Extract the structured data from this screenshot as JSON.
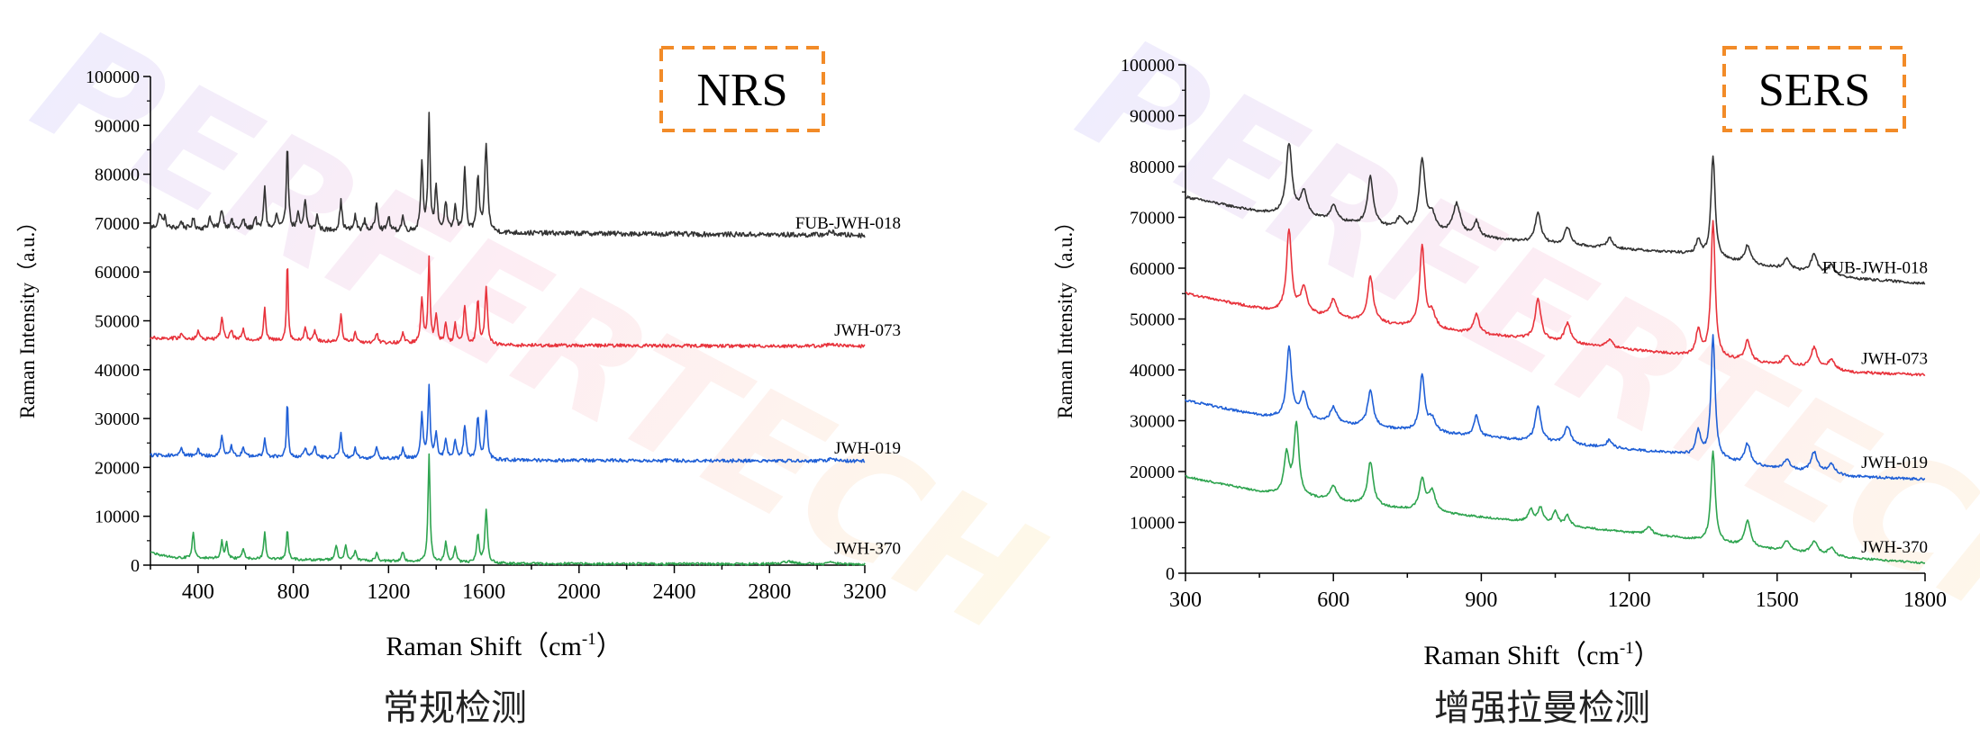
{
  "watermark": "PERFERTECH",
  "colors": {
    "black": "#333333",
    "red": "#e8333c",
    "blue": "#1f5fd6",
    "green": "#2ea44f",
    "badge_border": "#f28b28"
  },
  "chart_data": [
    {
      "id": "nrs",
      "type": "line",
      "badge": "NRS",
      "caption": "常规检测",
      "xlabel": "Raman Shift（cm",
      "xlabel_sup": "-1",
      "xlabel_end": "）",
      "ylabel": "Raman Intensity（a.u.）",
      "xlim": [
        200,
        3200
      ],
      "ylim": [
        0,
        100000
      ],
      "xticks": [
        400,
        800,
        1200,
        1600,
        2000,
        2400,
        2800,
        3200
      ],
      "yticks": [
        0,
        10000,
        20000,
        30000,
        40000,
        50000,
        60000,
        70000,
        80000,
        90000,
        100000
      ],
      "series": [
        {
          "name": "FUB-JWH-018",
          "color": "#333333",
          "baseline": [
            [
              200,
              69000
            ],
            [
              1650,
              68000
            ],
            [
              3200,
              67500
            ]
          ],
          "noise": 1000,
          "peaks": [
            [
              240,
              3000,
              8
            ],
            [
              260,
              2000,
              6
            ],
            [
              330,
              1500,
              6
            ],
            [
              380,
              2000,
              6
            ],
            [
              450,
              2500,
              6
            ],
            [
              500,
              4000,
              7
            ],
            [
              540,
              2000,
              6
            ],
            [
              590,
              2000,
              6
            ],
            [
              640,
              2500,
              6
            ],
            [
              680,
              9000,
              5
            ],
            [
              730,
              3000,
              6
            ],
            [
              775,
              18000,
              5
            ],
            [
              820,
              3000,
              6
            ],
            [
              850,
              6000,
              6
            ],
            [
              900,
              3000,
              6
            ],
            [
              1000,
              6000,
              6
            ],
            [
              1060,
              3000,
              6
            ],
            [
              1100,
              2000,
              6
            ],
            [
              1150,
              6000,
              6
            ],
            [
              1200,
              3000,
              6
            ],
            [
              1260,
              3000,
              6
            ],
            [
              1340,
              14000,
              6
            ],
            [
              1370,
              23000,
              5
            ],
            [
              1400,
              9000,
              6
            ],
            [
              1440,
              6000,
              6
            ],
            [
              1480,
              5000,
              6
            ],
            [
              1520,
              13000,
              6
            ],
            [
              1575,
              11000,
              6
            ],
            [
              1610,
              18000,
              7
            ],
            [
              3060,
              600,
              20
            ]
          ]
        },
        {
          "name": "JWH-073",
          "color": "#e8333c",
          "baseline": [
            [
              200,
              46500
            ],
            [
              1650,
              45000
            ],
            [
              3200,
              44800
            ]
          ],
          "noise": 700,
          "peaks": [
            [
              330,
              1000,
              6
            ],
            [
              400,
              1500,
              6
            ],
            [
              500,
              4500,
              6
            ],
            [
              540,
              2000,
              6
            ],
            [
              590,
              2000,
              6
            ],
            [
              680,
              6500,
              5
            ],
            [
              775,
              17000,
              4
            ],
            [
              850,
              3000,
              6
            ],
            [
              890,
              2000,
              6
            ],
            [
              1000,
              5500,
              6
            ],
            [
              1060,
              2000,
              6
            ],
            [
              1150,
              2000,
              6
            ],
            [
              1260,
              2000,
              6
            ],
            [
              1340,
              9000,
              6
            ],
            [
              1370,
              17000,
              5
            ],
            [
              1400,
              6000,
              6
            ],
            [
              1440,
              4000,
              6
            ],
            [
              1480,
              4000,
              6
            ],
            [
              1520,
              8000,
              6
            ],
            [
              1575,
              9000,
              6
            ],
            [
              1610,
              12000,
              6
            ],
            [
              3060,
              500,
              20
            ]
          ]
        },
        {
          "name": "JWH-019",
          "color": "#1f5fd6",
          "baseline": [
            [
              200,
              22500
            ],
            [
              1650,
              21500
            ],
            [
              3200,
              21300
            ]
          ],
          "noise": 700,
          "peaks": [
            [
              330,
              1500,
              6
            ],
            [
              400,
              1500,
              6
            ],
            [
              500,
              4000,
              6
            ],
            [
              540,
              2000,
              6
            ],
            [
              590,
              2000,
              6
            ],
            [
              680,
              4000,
              5
            ],
            [
              775,
              12000,
              4
            ],
            [
              850,
              2000,
              6
            ],
            [
              890,
              2500,
              6
            ],
            [
              1000,
              5000,
              6
            ],
            [
              1060,
              2000,
              6
            ],
            [
              1150,
              2000,
              6
            ],
            [
              1260,
              2000,
              6
            ],
            [
              1340,
              9000,
              6
            ],
            [
              1370,
              15000,
              5
            ],
            [
              1400,
              5000,
              6
            ],
            [
              1440,
              4000,
              6
            ],
            [
              1480,
              4000,
              6
            ],
            [
              1520,
              7000,
              6
            ],
            [
              1575,
              9000,
              6
            ],
            [
              1610,
              10000,
              6
            ],
            [
              3060,
              400,
              20
            ]
          ]
        },
        {
          "name": "JWH-370",
          "color": "#2ea44f",
          "baseline": [
            [
              200,
              2500
            ],
            [
              300,
              1500
            ],
            [
              1000,
              1000
            ],
            [
              1700,
              300
            ],
            [
              3200,
              200
            ]
          ],
          "noise": 500,
          "peaks": [
            [
              380,
              5500,
              5
            ],
            [
              500,
              3500,
              5
            ],
            [
              520,
              3500,
              5
            ],
            [
              590,
              2000,
              6
            ],
            [
              680,
              5500,
              5
            ],
            [
              775,
              6000,
              5
            ],
            [
              980,
              3000,
              6
            ],
            [
              1020,
              3000,
              6
            ],
            [
              1060,
              2000,
              6
            ],
            [
              1150,
              1500,
              6
            ],
            [
              1260,
              2000,
              6
            ],
            [
              1370,
              22000,
              5
            ],
            [
              1440,
              4000,
              6
            ],
            [
              1480,
              3000,
              6
            ],
            [
              1575,
              6000,
              6
            ],
            [
              1610,
              11000,
              6
            ],
            [
              2880,
              500,
              30
            ],
            [
              3060,
              300,
              20
            ]
          ]
        }
      ]
    },
    {
      "id": "sers",
      "type": "line",
      "badge": "SERS",
      "caption": "增强拉曼检测",
      "xlabel": "Raman Shift（cm",
      "xlabel_sup": "-1",
      "xlabel_end": "）",
      "ylabel": "Raman Intensity（a.u.）",
      "xlim": [
        300,
        1800
      ],
      "ylim": [
        0,
        100000
      ],
      "xticks": [
        300,
        600,
        900,
        1200,
        1500,
        1800
      ],
      "yticks": [
        0,
        10000,
        20000,
        30000,
        40000,
        50000,
        60000,
        70000,
        80000,
        90000,
        100000
      ],
      "series": [
        {
          "name": "FUB-JWH-018",
          "color": "#333333",
          "baseline": [
            [
              300,
              74000
            ],
            [
              450,
              71000
            ],
            [
              700,
              68000
            ],
            [
              1000,
              65000
            ],
            [
              1300,
              63000
            ],
            [
              1500,
              60000
            ],
            [
              1650,
              58000
            ],
            [
              1800,
              57000
            ]
          ],
          "noise": 500,
          "peaks": [
            [
              510,
              14000,
              7
            ],
            [
              540,
              5000,
              8
            ],
            [
              600,
              3000,
              8
            ],
            [
              675,
              9500,
              7
            ],
            [
              735,
              2000,
              8
            ],
            [
              780,
              14000,
              7
            ],
            [
              800,
              3000,
              8
            ],
            [
              850,
              6000,
              9
            ],
            [
              890,
              3000,
              6
            ],
            [
              1015,
              6000,
              7
            ],
            [
              1075,
              3500,
              7
            ],
            [
              1160,
              2000,
              7
            ],
            [
              1340,
              3000,
              6
            ],
            [
              1370,
              20000,
              5
            ],
            [
              1440,
              3500,
              7
            ],
            [
              1520,
              2000,
              8
            ],
            [
              1575,
              3500,
              8
            ],
            [
              1610,
              2000,
              8
            ]
          ]
        },
        {
          "name": "JWH-073",
          "color": "#e8333c",
          "baseline": [
            [
              300,
              55000
            ],
            [
              450,
              52000
            ],
            [
              700,
              49000
            ],
            [
              1000,
              46000
            ],
            [
              1300,
              43000
            ],
            [
              1500,
              41000
            ],
            [
              1650,
              39500
            ],
            [
              1800,
              39000
            ]
          ],
          "noise": 500,
          "peaks": [
            [
              510,
              16000,
              6
            ],
            [
              540,
              5000,
              8
            ],
            [
              600,
              3500,
              8
            ],
            [
              675,
              9000,
              7
            ],
            [
              780,
              16000,
              6
            ],
            [
              800,
              3000,
              8
            ],
            [
              890,
              4000,
              6
            ],
            [
              1015,
              8000,
              7
            ],
            [
              1075,
              4000,
              7
            ],
            [
              1160,
              1500,
              7
            ],
            [
              1340,
              5000,
              6
            ],
            [
              1370,
              27000,
              5
            ],
            [
              1440,
              4000,
              7
            ],
            [
              1520,
              2000,
              8
            ],
            [
              1575,
              4000,
              8
            ],
            [
              1610,
              2000,
              8
            ]
          ]
        },
        {
          "name": "JWH-019",
          "color": "#1f5fd6",
          "baseline": [
            [
              300,
              34000
            ],
            [
              450,
              31000
            ],
            [
              700,
              28500
            ],
            [
              1000,
              26000
            ],
            [
              1300,
              23500
            ],
            [
              1500,
              20500
            ],
            [
              1650,
              19000
            ],
            [
              1800,
              18500
            ]
          ],
          "noise": 500,
          "peaks": [
            [
              510,
              14000,
              6
            ],
            [
              540,
              5000,
              8
            ],
            [
              600,
              3000,
              8
            ],
            [
              675,
              7000,
              7
            ],
            [
              780,
              11000,
              6
            ],
            [
              800,
              2500,
              8
            ],
            [
              890,
              4000,
              6
            ],
            [
              1015,
              7000,
              7
            ],
            [
              1075,
              3500,
              7
            ],
            [
              1160,
              1500,
              7
            ],
            [
              1340,
              5000,
              6
            ],
            [
              1370,
              24000,
              5
            ],
            [
              1440,
              4000,
              7
            ],
            [
              1520,
              2000,
              8
            ],
            [
              1575,
              4000,
              8
            ],
            [
              1610,
              2000,
              8
            ]
          ]
        },
        {
          "name": "JWH-370",
          "color": "#2ea44f",
          "baseline": [
            [
              300,
              19000
            ],
            [
              450,
              16000
            ],
            [
              700,
              13000
            ],
            [
              1000,
              10000
            ],
            [
              1300,
              7000
            ],
            [
              1500,
              4500
            ],
            [
              1650,
              3000
            ],
            [
              1800,
              2000
            ]
          ],
          "noise": 400,
          "peaks": [
            [
              505,
              8000,
              6
            ],
            [
              525,
              14000,
              6
            ],
            [
              600,
              3000,
              8
            ],
            [
              675,
              8500,
              7
            ],
            [
              780,
              6000,
              7
            ],
            [
              800,
              4000,
              8
            ],
            [
              1000,
              2500,
              6
            ],
            [
              1020,
              3000,
              6
            ],
            [
              1050,
              2500,
              6
            ],
            [
              1075,
              2000,
              6
            ],
            [
              1240,
              1500,
              7
            ],
            [
              1370,
              18000,
              5
            ],
            [
              1440,
              5000,
              7
            ],
            [
              1520,
              2000,
              8
            ],
            [
              1575,
              2500,
              8
            ],
            [
              1610,
              1500,
              8
            ]
          ]
        }
      ]
    }
  ]
}
